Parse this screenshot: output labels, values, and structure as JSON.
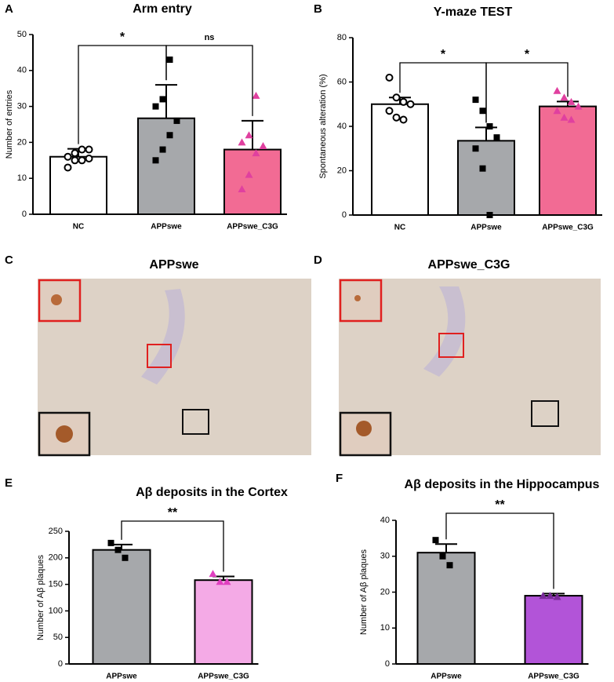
{
  "chart_data": [
    {
      "type": "bar",
      "panel": "A",
      "title": "Arm entry",
      "ylabel": "Number of entries",
      "categories": [
        "NC",
        "APPswe",
        "APPswe_C3G"
      ],
      "values": [
        16,
        26.7,
        18
      ],
      "errors": [
        2.2,
        9.3,
        8
      ],
      "colors": [
        "#ffffff",
        "#a6a8ab",
        "#f26b94"
      ],
      "point_colors": [
        "#000000",
        "#000000",
        "#e0409f"
      ],
      "markers": [
        "circle",
        "square",
        "triangle"
      ],
      "points": [
        [
          13,
          15,
          15,
          15.5,
          16,
          17,
          18,
          18
        ],
        [
          15,
          18,
          22,
          26,
          30,
          32,
          43
        ],
        [
          7,
          11,
          17,
          19,
          20,
          22,
          33
        ]
      ],
      "ylim": [
        0,
        50
      ],
      "yticks": [
        0,
        10,
        20,
        30,
        40,
        50
      ],
      "annotations": [
        "*",
        "ns"
      ]
    },
    {
      "type": "bar",
      "panel": "B",
      "title": "Y-maze TEST",
      "ylabel": "Spontaneous alteration (%)",
      "categories": [
        "NC",
        "APPswe",
        "APPswe_C3G"
      ],
      "values": [
        50,
        33.5,
        49
      ],
      "errors": [
        3,
        6,
        2.2
      ],
      "colors": [
        "#ffffff",
        "#a6a8ab",
        "#f26b94"
      ],
      "point_colors": [
        "#000000",
        "#000000",
        "#e0409f"
      ],
      "markers": [
        "circle",
        "square",
        "triangle"
      ],
      "points": [
        [
          62,
          53,
          51,
          50,
          47,
          44,
          43
        ],
        [
          52,
          47,
          40,
          35,
          30,
          21,
          0
        ],
        [
          56,
          53,
          51,
          49,
          47,
          44,
          43
        ]
      ],
      "ylim": [
        0,
        80
      ],
      "yticks": [
        0,
        20,
        40,
        60,
        80
      ],
      "annotations": [
        "*",
        "*"
      ]
    },
    {
      "type": "bar",
      "panel": "E",
      "title": "Aβ deposits in the Cortex",
      "ylabel": "Number of Aβ plaques",
      "categories": [
        "APPswe",
        "APPswe_C3G"
      ],
      "values": [
        215,
        158
      ],
      "errors": [
        10,
        7
      ],
      "colors": [
        "#a6a8ab",
        "#f4aae6"
      ],
      "point_colors": [
        "#000000",
        "#e040c0"
      ],
      "markers": [
        "square",
        "triangle"
      ],
      "points": [
        [
          228,
          215,
          200
        ],
        [
          170,
          155,
          155
        ]
      ],
      "ylim": [
        0,
        250
      ],
      "yticks": [
        0,
        50,
        100,
        150,
        200,
        250
      ],
      "annotations": [
        "**"
      ]
    },
    {
      "type": "bar",
      "panel": "F",
      "title": "Aβ deposits in the Hippocampus",
      "ylabel": "Number of Aβ plaques",
      "categories": [
        "APPswe",
        "APPswe_C3G"
      ],
      "values": [
        31,
        19
      ],
      "errors": [
        2.4,
        0.6
      ],
      "colors": [
        "#a6a8ab",
        "#b254d8"
      ],
      "point_colors": [
        "#000000",
        "#7a2a9a"
      ],
      "markers": [
        "square",
        "triangle"
      ],
      "points": [
        [
          34.5,
          30,
          27.5
        ],
        [
          19,
          19,
          18.7
        ]
      ],
      "ylim": [
        0,
        40
      ],
      "yticks": [
        0,
        10,
        20,
        30,
        40
      ],
      "annotations": [
        "**"
      ]
    }
  ],
  "images": [
    {
      "panel": "C",
      "title": "APPswe"
    },
    {
      "panel": "D",
      "title": "APPswe_C3G"
    }
  ]
}
